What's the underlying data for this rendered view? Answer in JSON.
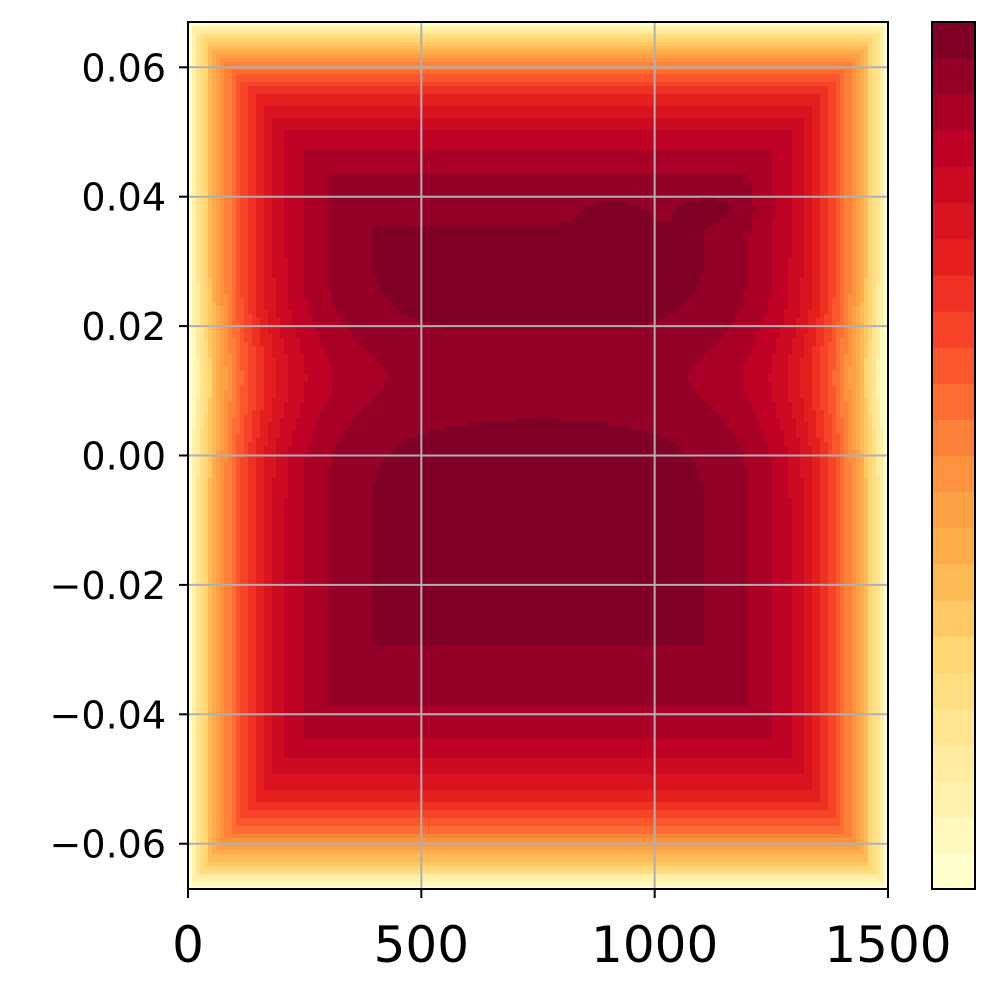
{
  "chart_data": {
    "type": "heatmap",
    "title": "",
    "xlabel": "",
    "ylabel": "",
    "xlim": [
      0,
      1500
    ],
    "ylim": [
      -0.067,
      0.067
    ],
    "x_ticks": [
      0,
      500,
      1000,
      1500
    ],
    "x_tick_labels": [
      "0",
      "500",
      "1000",
      "1500"
    ],
    "y_ticks": [
      0.06,
      0.04,
      0.02,
      0.0,
      -0.02,
      -0.04,
      -0.06
    ],
    "y_tick_labels": [
      "0.06",
      "0.04",
      "0.02",
      "0.00",
      "−0.02",
      "−0.04",
      "−0.06"
    ],
    "grid": true,
    "colormap": "YlOrRd",
    "contour_levels": 24,
    "colorbar": {
      "position": "right",
      "tick_labels": []
    },
    "field_description": "Filled contour of a field that is lowest at all four edges of the domain and highest in two interior plateaus: an upper plateau (y about 0.022 to 0.047, x about 230 to 1320) and a lower plateau (y about -0.042 to 0.004, x about 250 to 1320), separated by a slightly lower band near y = 0.01. Two small local maxima near (900, 0.0375) and (1120, 0.038).",
    "features": [
      {
        "name": "upper-plateau",
        "x_range": [
          230,
          1320
        ],
        "y_range": [
          0.022,
          0.047
        ],
        "level": 0.92
      },
      {
        "name": "lower-plateau",
        "x_range": [
          250,
          1320
        ],
        "y_range": [
          -0.042,
          0.004
        ],
        "level": 0.92
      },
      {
        "name": "local-peak",
        "x": 910,
        "y": 0.0375,
        "level": 0.98
      },
      {
        "name": "local-peak",
        "x": 1115,
        "y": 0.038,
        "level": 0.98
      }
    ],
    "colors": {
      "low": "#ffffcc",
      "mid": "#fd8d3c",
      "high": "#800026",
      "grid": "#b0b0b0",
      "axes": "#000000"
    }
  }
}
